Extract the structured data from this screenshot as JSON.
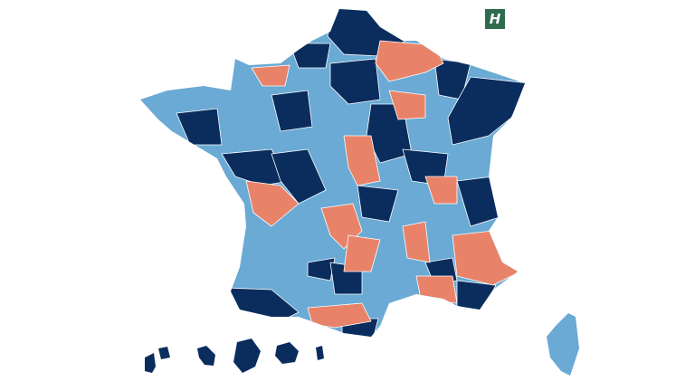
{
  "logo": {
    "text": "H"
  }
}
